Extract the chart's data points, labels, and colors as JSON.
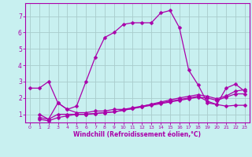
{
  "xlabel": "Windchill (Refroidissement éolien,°C)",
  "bg_color": "#c8f0f0",
  "grid_color": "#a8cccc",
  "line_color": "#aa00aa",
  "xlim": [
    -0.5,
    23.5
  ],
  "ylim": [
    0.5,
    7.8
  ],
  "xticks": [
    0,
    1,
    2,
    3,
    4,
    5,
    6,
    7,
    8,
    9,
    10,
    11,
    12,
    13,
    14,
    15,
    16,
    17,
    18,
    19,
    20,
    21,
    22,
    23
  ],
  "yticks": [
    1,
    2,
    3,
    4,
    5,
    6,
    7
  ],
  "main_line_x": [
    0,
    1,
    2,
    3,
    4,
    5,
    6,
    7,
    8,
    9,
    10,
    11,
    12,
    13,
    14,
    15,
    16,
    17,
    18,
    19,
    20,
    21,
    22,
    23
  ],
  "main_line_y": [
    2.6,
    2.6,
    3.0,
    1.7,
    1.3,
    1.5,
    3.0,
    4.5,
    5.7,
    6.0,
    6.5,
    6.6,
    6.6,
    6.6,
    7.2,
    7.35,
    6.3,
    3.7,
    2.8,
    1.7,
    1.6,
    2.6,
    2.85,
    2.4
  ],
  "line2_x": [
    1,
    2,
    3,
    4,
    5,
    6,
    7,
    8,
    9,
    10,
    11,
    12,
    13,
    14,
    15,
    16,
    17,
    18,
    19,
    20,
    21,
    22,
    23
  ],
  "line2_y": [
    1.0,
    0.7,
    1.7,
    1.3,
    1.1,
    1.1,
    1.2,
    1.2,
    1.3,
    1.3,
    1.4,
    1.5,
    1.6,
    1.7,
    1.8,
    1.9,
    2.0,
    2.1,
    1.8,
    1.6,
    1.5,
    1.55,
    1.55
  ],
  "line3_x": [
    1,
    2,
    3,
    4,
    5,
    6,
    7,
    8,
    9,
    10,
    11,
    12,
    13,
    14,
    15,
    16,
    17,
    18,
    19,
    20,
    21,
    22,
    23
  ],
  "line3_y": [
    0.8,
    0.7,
    1.0,
    1.0,
    1.0,
    1.0,
    1.05,
    1.1,
    1.15,
    1.25,
    1.35,
    1.45,
    1.55,
    1.65,
    1.75,
    1.85,
    1.95,
    2.05,
    2.0,
    1.85,
    2.05,
    2.25,
    2.25
  ],
  "line4_x": [
    1,
    2,
    3,
    4,
    5,
    6,
    7,
    8,
    9,
    10,
    11,
    12,
    13,
    14,
    15,
    16,
    17,
    18,
    19,
    20,
    21,
    22,
    23
  ],
  "line4_y": [
    0.7,
    0.6,
    0.8,
    0.9,
    1.0,
    1.0,
    1.05,
    1.1,
    1.15,
    1.25,
    1.35,
    1.48,
    1.62,
    1.75,
    1.88,
    2.0,
    2.1,
    2.2,
    2.1,
    1.95,
    2.12,
    2.42,
    2.5
  ]
}
